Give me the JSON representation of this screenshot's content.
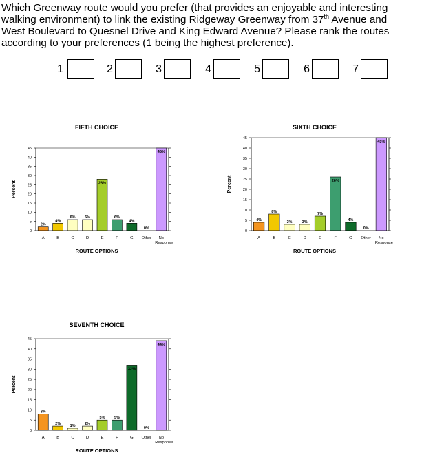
{
  "question": {
    "line1": "Which Greenway route would you prefer (that provides an enjoyable and interesting",
    "line2_pre": "walking environment) to link the existing Ridgeway Greenway from 37",
    "line2_sup": "th",
    "line2_post": " Avenue and",
    "line3": "West Boulevard to Quesnel Drive and King Edward Avenue?  Please rank the routes",
    "line4": "according to your preferences (1 being the highest preference)."
  },
  "ranks": [
    "1",
    "2",
    "3",
    "4",
    "5",
    "6",
    "7"
  ],
  "chart_data": [
    {
      "type": "bar",
      "title": "FIFTH CHOICE",
      "xlabel": "ROUTE OPTIONS",
      "ylabel": "Percent",
      "ylim": [
        0,
        45
      ],
      "yticks": [
        0,
        5,
        10,
        15,
        20,
        25,
        30,
        35,
        40,
        45
      ],
      "grid": false,
      "categories": [
        "A",
        "B",
        "C",
        "D",
        "E",
        "F",
        "G",
        "Other",
        "No Response"
      ],
      "values": [
        2,
        4,
        6,
        6,
        28,
        6,
        4,
        0,
        45
      ],
      "data_labels": [
        "2%",
        "4%",
        "6%",
        "6%",
        "28%",
        "6%",
        "4%",
        "0%",
        "45%"
      ],
      "colors": [
        "#f4941f",
        "#f2c800",
        "#ffffc0",
        "#ffffc0",
        "#a4cd2a",
        "#3d9e6f",
        "#0e6b2a",
        "#ffffff",
        "#cc99ff"
      ]
    },
    {
      "type": "bar",
      "title": "SIXTH CHOICE",
      "xlabel": "ROUTE OPTIONS",
      "ylabel": "Percent",
      "ylim": [
        0,
        45
      ],
      "yticks": [
        0,
        5,
        10,
        15,
        20,
        25,
        30,
        35,
        40,
        45
      ],
      "grid": false,
      "categories": [
        "A",
        "B",
        "C",
        "D",
        "E",
        "F",
        "G",
        "Other",
        "No Response"
      ],
      "values": [
        4,
        8,
        3,
        3,
        7,
        26,
        4,
        0,
        45
      ],
      "data_labels": [
        "4%",
        "8%",
        "3%",
        "3%",
        "7%",
        "26%",
        "4%",
        "0%",
        "45%"
      ],
      "colors": [
        "#f4941f",
        "#f2c800",
        "#ffffc0",
        "#ffffc0",
        "#a4cd2a",
        "#3d9e6f",
        "#0e6b2a",
        "#ffffff",
        "#cc99ff"
      ]
    },
    {
      "type": "bar",
      "title": "SEVENTH CHOICE",
      "xlabel": "ROUTE OPTIONS",
      "ylabel": "Percent",
      "ylim": [
        0,
        45
      ],
      "yticks": [
        0,
        5,
        10,
        15,
        20,
        25,
        30,
        35,
        40,
        45
      ],
      "grid": false,
      "categories": [
        "A",
        "B",
        "C",
        "D",
        "E",
        "F",
        "G",
        "Other",
        "No Response"
      ],
      "values": [
        8,
        2,
        1,
        2,
        5,
        5,
        32,
        0,
        44
      ],
      "data_labels": [
        "8%",
        "2%",
        "1%",
        "2%",
        "5%",
        "5%",
        "32%",
        "0%",
        "44%"
      ],
      "colors": [
        "#f4941f",
        "#f2c800",
        "#ffffc0",
        "#ffffc0",
        "#a4cd2a",
        "#3d9e6f",
        "#0e6b2a",
        "#ffffff",
        "#cc99ff"
      ]
    }
  ]
}
